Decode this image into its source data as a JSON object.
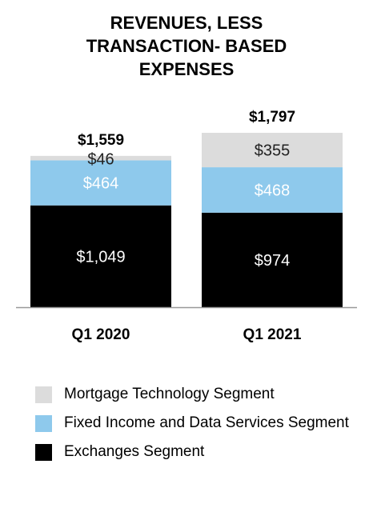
{
  "chart_data": {
    "type": "bar",
    "stacked": true,
    "title": "REVENUES, LESS\nTRANSACTION- BASED\nEXPENSES",
    "categories": [
      "Q1 2020",
      "Q1 2021"
    ],
    "totals": [
      1559,
      1797
    ],
    "total_labels": [
      "$1,559",
      "$1,797"
    ],
    "series": [
      {
        "name": "Exchanges Segment",
        "color": "#000000",
        "label_color": "#ffffff",
        "values": [
          1049,
          974
        ],
        "labels": [
          "$1,049",
          "$974"
        ]
      },
      {
        "name": "Fixed Income and Data Services Segment",
        "color": "#8ec9ec",
        "label_color": "#ffffff",
        "values": [
          464,
          468
        ],
        "labels": [
          "$464",
          "$468"
        ]
      },
      {
        "name": "Mortgage Technology Segment",
        "color": "#dcdcdc",
        "label_color": "#222222",
        "values": [
          46,
          355
        ],
        "labels": [
          "$46",
          "$355"
        ]
      }
    ],
    "legend": "bottom",
    "legend_order": [
      2,
      1,
      0
    ],
    "axis_color": "#999999",
    "grid": false
  }
}
